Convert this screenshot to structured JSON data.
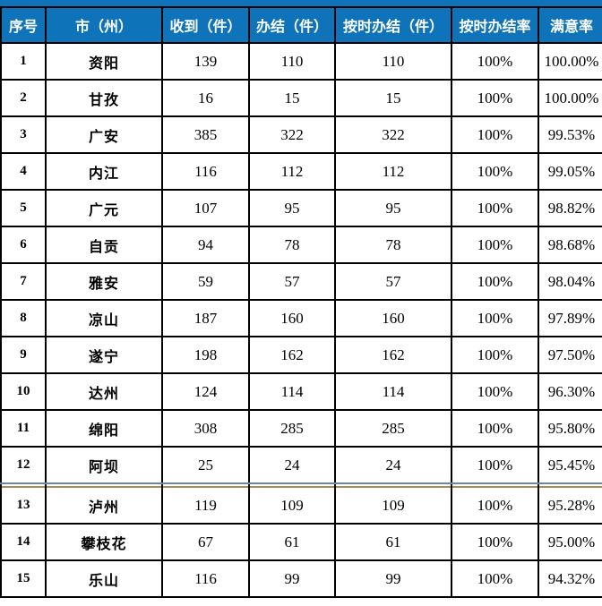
{
  "table": {
    "headers": [
      "序号",
      "市（州）",
      "收到（件）",
      "办结（件）",
      "按时办结（件）",
      "按时办结率",
      "满意率"
    ],
    "row_keys": [
      "no",
      "city",
      "received",
      "completed",
      "on_time",
      "on_time_rate",
      "satisfaction"
    ],
    "divider_after_row": 12,
    "rows": [
      {
        "no": "1",
        "city": "资阳",
        "received": "139",
        "completed": "110",
        "on_time": "110",
        "on_time_rate": "100%",
        "satisfaction": "100.00%"
      },
      {
        "no": "2",
        "city": "甘孜",
        "received": "16",
        "completed": "15",
        "on_time": "15",
        "on_time_rate": "100%",
        "satisfaction": "100.00%"
      },
      {
        "no": "3",
        "city": "广安",
        "received": "385",
        "completed": "322",
        "on_time": "322",
        "on_time_rate": "100%",
        "satisfaction": "99.53%"
      },
      {
        "no": "4",
        "city": "内江",
        "received": "116",
        "completed": "112",
        "on_time": "112",
        "on_time_rate": "100%",
        "satisfaction": "99.05%"
      },
      {
        "no": "5",
        "city": "广元",
        "received": "107",
        "completed": "95",
        "on_time": "95",
        "on_time_rate": "100%",
        "satisfaction": "98.82%"
      },
      {
        "no": "6",
        "city": "自贡",
        "received": "94",
        "completed": "78",
        "on_time": "78",
        "on_time_rate": "100%",
        "satisfaction": "98.68%"
      },
      {
        "no": "7",
        "city": "雅安",
        "received": "59",
        "completed": "57",
        "on_time": "57",
        "on_time_rate": "100%",
        "satisfaction": "98.04%"
      },
      {
        "no": "8",
        "city": "凉山",
        "received": "187",
        "completed": "160",
        "on_time": "160",
        "on_time_rate": "100%",
        "satisfaction": "97.89%"
      },
      {
        "no": "9",
        "city": "遂宁",
        "received": "198",
        "completed": "162",
        "on_time": "162",
        "on_time_rate": "100%",
        "satisfaction": "97.50%"
      },
      {
        "no": "10",
        "city": "达州",
        "received": "124",
        "completed": "114",
        "on_time": "114",
        "on_time_rate": "100%",
        "satisfaction": "96.30%"
      },
      {
        "no": "11",
        "city": "绵阳",
        "received": "308",
        "completed": "285",
        "on_time": "285",
        "on_time_rate": "100%",
        "satisfaction": "95.80%"
      },
      {
        "no": "12",
        "city": "阿坝",
        "received": "25",
        "completed": "24",
        "on_time": "24",
        "on_time_rate": "100%",
        "satisfaction": "95.45%"
      },
      {
        "no": "13",
        "city": "泸州",
        "received": "119",
        "completed": "109",
        "on_time": "109",
        "on_time_rate": "100%",
        "satisfaction": "95.28%"
      },
      {
        "no": "14",
        "city": "攀枝花",
        "received": "67",
        "completed": "61",
        "on_time": "61",
        "on_time_rate": "100%",
        "satisfaction": "95.00%"
      },
      {
        "no": "15",
        "city": "乐山",
        "received": "116",
        "completed": "99",
        "on_time": "99",
        "on_time_rate": "100%",
        "satisfaction": "94.32%"
      }
    ]
  },
  "colors": {
    "header_bg": "#0e73b9",
    "header_text": "#ffffff",
    "grid_border": "#000000",
    "divider_top_line": "#6887a3",
    "divider_bottom_line": "#a98d56",
    "body_text": "#000000"
  }
}
